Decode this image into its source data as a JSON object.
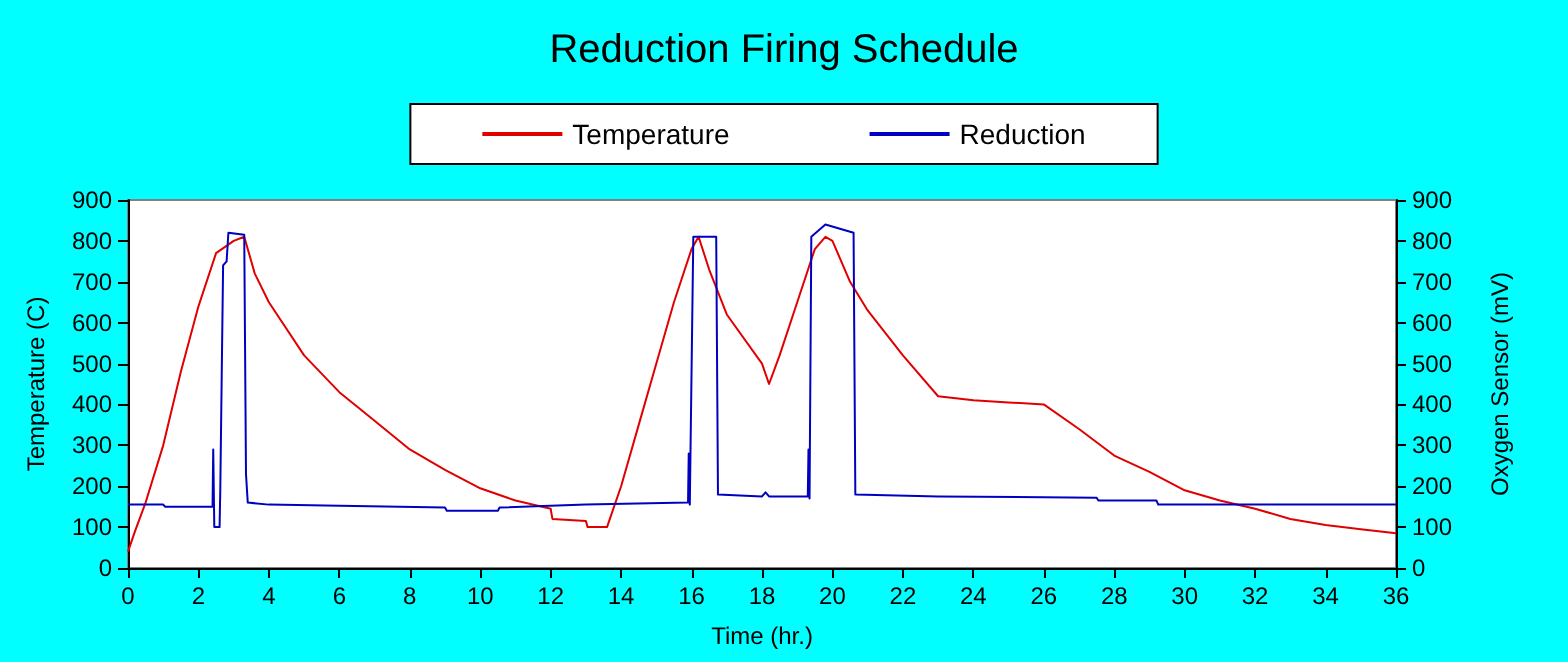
{
  "chart_data": {
    "type": "line",
    "title": "Reduction Firing Schedule",
    "xlabel": "Time (hr.)",
    "ylabel": "Temperature (C)",
    "y2label": "Oxygen Sensor (mV)",
    "xlim": [
      0,
      36
    ],
    "xticks": [
      0,
      2,
      4,
      6,
      8,
      10,
      12,
      14,
      16,
      18,
      20,
      22,
      24,
      26,
      28,
      30,
      32,
      34,
      36
    ],
    "ylim": [
      0,
      900
    ],
    "yticks": [
      0,
      100,
      200,
      300,
      400,
      500,
      600,
      700,
      800,
      900
    ],
    "y2lim": [
      0,
      900
    ],
    "y2ticks": [
      0,
      100,
      200,
      300,
      400,
      500,
      600,
      700,
      800,
      900
    ],
    "legend": "top",
    "grid": false,
    "marker": "none",
    "line_style": "solid",
    "series": [
      {
        "name": "Temperature",
        "color": "#e00000",
        "x": [
          0,
          0.2,
          0.5,
          1,
          1.5,
          2,
          2.5,
          3,
          3.3,
          3.6,
          4,
          5,
          6,
          7,
          8,
          9,
          10,
          11,
          12,
          12.05,
          13,
          13.05,
          13.6,
          14,
          14.5,
          15,
          15.5,
          16,
          16.2,
          16.5,
          17,
          18,
          18.2,
          18.5,
          19,
          19.5,
          19.8,
          20,
          20.5,
          21,
          22,
          23,
          24,
          25,
          26,
          27,
          28,
          29,
          30,
          31,
          32,
          33,
          34,
          35,
          36
        ],
        "values": [
          40,
          90,
          160,
          300,
          480,
          640,
          770,
          800,
          810,
          720,
          650,
          520,
          430,
          360,
          290,
          240,
          195,
          165,
          145,
          120,
          115,
          100,
          100,
          200,
          350,
          500,
          650,
          780,
          810,
          730,
          620,
          500,
          450,
          520,
          650,
          780,
          810,
          800,
          700,
          630,
          520,
          420,
          410,
          405,
          400,
          340,
          275,
          235,
          190,
          165,
          145,
          120,
          105,
          95,
          85
        ]
      },
      {
        "name": "Reduction",
        "color": "#0000c0",
        "axis": "y2",
        "x": [
          0,
          1,
          1.05,
          2.4,
          2.42,
          2.45,
          2.6,
          2.62,
          2.7,
          2.8,
          2.85,
          3.3,
          3.35,
          3.4,
          4,
          6,
          9,
          9.05,
          10.5,
          10.55,
          13,
          15.9,
          15.92,
          15.95,
          16.05,
          16.7,
          16.75,
          18,
          18.1,
          18.2,
          19.3,
          19.32,
          19.35,
          19.4,
          19.8,
          20.6,
          20.65,
          23,
          27.5,
          27.55,
          29.2,
          29.25,
          36
        ],
        "values": [
          155,
          155,
          150,
          150,
          290,
          100,
          100,
          190,
          740,
          750,
          820,
          815,
          230,
          160,
          155,
          152,
          148,
          140,
          140,
          148,
          155,
          160,
          280,
          155,
          810,
          810,
          180,
          175,
          185,
          175,
          175,
          290,
          170,
          810,
          840,
          820,
          180,
          175,
          172,
          165,
          165,
          155,
          155
        ]
      }
    ]
  }
}
